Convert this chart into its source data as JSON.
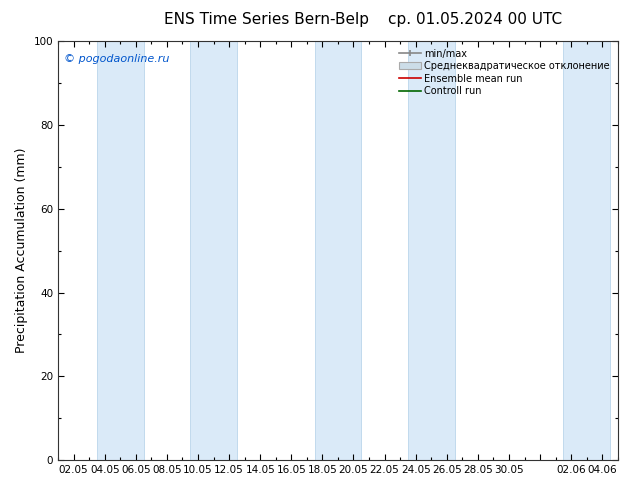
{
  "title_left": "ENS Time Series Bern-Belp",
  "title_right": "ср. 01.05.2024 00 UTC",
  "ylabel": "Precipitation Accumulation (mm)",
  "ylim": [
    0,
    100
  ],
  "background_color": "#ffffff",
  "plot_bg_color": "#ffffff",
  "watermark": "© pogodaonline.ru",
  "xtick_labels": [
    "02.05",
    "04.05",
    "06.05",
    "08.05",
    "10.05",
    "12.05",
    "14.05",
    "16.05",
    "18.05",
    "20.05",
    "22.05",
    "24.05",
    "26.05",
    "28.05",
    "30.05",
    "",
    "02.06",
    "04.06"
  ],
  "band_color": "#daeaf8",
  "band_edge_color": "#b0cfe8",
  "legend_entries": [
    "min/max",
    "Среднеквадратическое отклонение",
    "Ensemble mean run",
    "Controll run"
  ],
  "title_fontsize": 11,
  "tick_fontsize": 7.5,
  "ylabel_fontsize": 9,
  "watermark_color": "#0055cc"
}
